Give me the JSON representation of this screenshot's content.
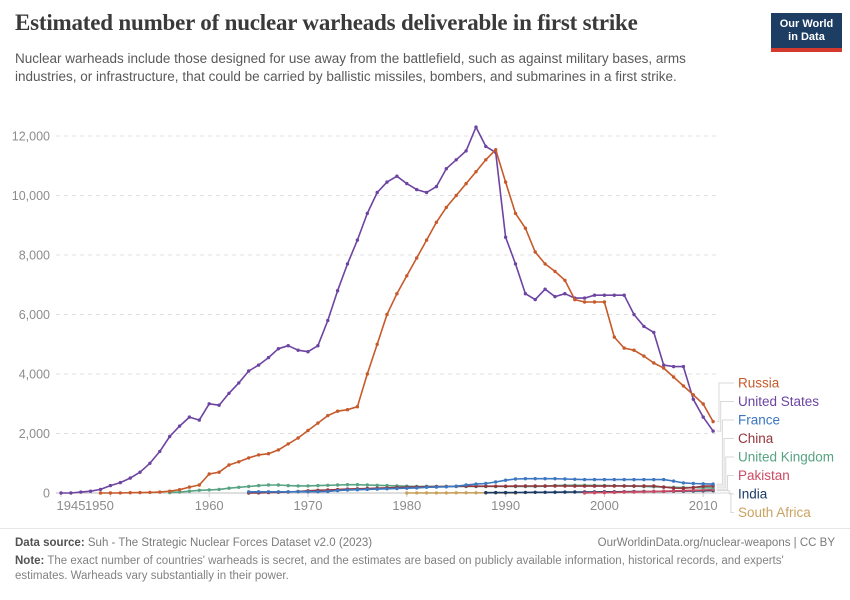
{
  "header": {
    "title": "Estimated number of nuclear warheads deliverable in first strike",
    "subtitle": "Nuclear warheads include those designed for use away from the battlefield, such as against military bases, arms industries, or infrastructure, that could be carried by ballistic missiles, bombers, and submarines in a first strike.",
    "logo_line1": "Our World",
    "logo_line2": "in Data"
  },
  "footer": {
    "datasource_label": "Data source:",
    "datasource": "Suh - The Strategic Nuclear Forces Dataset v2.0 (2023)",
    "credit": "OurWorldinData.org/nuclear-weapons | CC BY",
    "note_label": "Note:",
    "note": "The exact number of countries' warheads is secret, and the estimates are based on publicly available information, historical records, and experts' estimates. Warheads vary substantially in their power."
  },
  "colors": {
    "logo_background": "#1d3d63",
    "logo_stripe": "#d4392e",
    "gridline": "#e0e0e0",
    "zero_line": "#bdbdbd",
    "axis_text": "#8c8c8c",
    "connector": "#d9d9d9"
  },
  "chart_data": {
    "type": "line",
    "title": "Estimated number of nuclear warheads deliverable in first strike",
    "xlabel": "",
    "ylabel": "",
    "xlim": [
      1945,
      2011
    ],
    "ylim": [
      0,
      12400
    ],
    "yticks": [
      0,
      2000,
      4000,
      6000,
      8000,
      10000,
      12000
    ],
    "ytick_labels": [
      "0",
      "2,000",
      "4,000",
      "6,000",
      "8,000",
      "10,000",
      "12,000"
    ],
    "xticks": [
      1945,
      1950,
      1960,
      1970,
      1980,
      1990,
      2000,
      2010
    ],
    "grid": "horizontal-dashed",
    "legend_position": "right",
    "series": [
      {
        "name": "Russia",
        "color": "#C65A2B",
        "start_year": 1949,
        "values": [
          0,
          0,
          5,
          10,
          15,
          20,
          30,
          60,
          110,
          200,
          270,
          640,
          700,
          940,
          1050,
          1180,
          1280,
          1320,
          1450,
          1650,
          1850,
          2100,
          2350,
          2600,
          2750,
          2800,
          2900,
          4000,
          5000,
          6000,
          6700,
          7300,
          7900,
          8500,
          9100,
          9600,
          10000,
          10400,
          10800,
          11200,
          11540,
          10450,
          9400,
          8900,
          8100,
          7700,
          7450,
          7150,
          6500,
          6420,
          6420,
          6420,
          5240,
          4870,
          4800,
          4600,
          4370,
          4200,
          3900,
          3600,
          3300,
          2990,
          2400
        ]
      },
      {
        "name": "United States",
        "color": "#6D44A1",
        "start_year": 1945,
        "values": [
          0,
          0,
          30,
          60,
          120,
          250,
          350,
          500,
          700,
          1000,
          1400,
          1900,
          2250,
          2550,
          2450,
          3000,
          2950,
          3350,
          3700,
          4100,
          4300,
          4550,
          4850,
          4950,
          4800,
          4750,
          4950,
          5800,
          6800,
          7700,
          8500,
          9400,
          10100,
          10450,
          10650,
          10400,
          10200,
          10100,
          10300,
          10900,
          11200,
          11500,
          12300,
          11650,
          11450,
          8600,
          7700,
          6700,
          6500,
          6850,
          6600,
          6700,
          6550,
          6550,
          6650,
          6650,
          6650,
          6650,
          6000,
          5600,
          5400,
          4300,
          4250,
          4250,
          3150,
          2550,
          2080
        ]
      },
      {
        "name": "France",
        "color": "#3C77C1",
        "start_year": 1964,
        "values": [
          40,
          40,
          40,
          40,
          40,
          45,
          45,
          45,
          50,
          80,
          100,
          110,
          120,
          130,
          140,
          150,
          160,
          170,
          190,
          200,
          210,
          230,
          270,
          300,
          320,
          370,
          430,
          470,
          480,
          480,
          480,
          480,
          470,
          460,
          450,
          450,
          450,
          450,
          450,
          450,
          450,
          450,
          450,
          400,
          340,
          320,
          310,
          300
        ]
      },
      {
        "name": "China",
        "color": "#94353D",
        "start_year": 1964,
        "values": [
          1,
          5,
          15,
          25,
          35,
          50,
          75,
          90,
          100,
          115,
          130,
          140,
          150,
          160,
          170,
          185,
          195,
          205,
          210,
          215,
          220,
          225,
          230,
          230,
          230,
          230,
          230,
          232,
          234,
          234,
          234,
          234,
          234,
          232,
          232,
          232,
          232,
          235,
          235,
          235,
          235,
          235,
          200,
          165,
          160,
          185,
          230,
          240
        ]
      },
      {
        "name": "United Kingdom",
        "color": "#57A383",
        "start_year": 1956,
        "values": [
          15,
          30,
          60,
          90,
          105,
          120,
          160,
          190,
          220,
          250,
          270,
          270,
          250,
          240,
          240,
          250,
          260,
          270,
          280,
          280,
          270,
          260,
          250,
          240,
          230,
          220,
          225,
          220,
          220,
          220,
          220,
          220,
          220,
          220,
          220,
          220,
          220,
          220,
          230,
          250,
          260,
          260,
          260,
          255,
          250,
          245,
          240,
          230,
          220,
          210,
          200,
          190,
          185,
          180,
          175,
          170
        ]
      },
      {
        "name": "Pakistan",
        "color": "#CC4A63",
        "start_year": 1998,
        "values": [
          5,
          10,
          15,
          20,
          30,
          35,
          40,
          50,
          60,
          70,
          80,
          90,
          100,
          110
        ]
      },
      {
        "name": "India",
        "color": "#1B3B66",
        "start_year": 1988,
        "values": [
          10,
          12,
          15,
          18,
          20,
          22,
          25,
          28,
          30,
          32,
          35,
          38,
          40,
          42,
          45,
          48,
          50,
          50,
          55,
          60,
          65,
          70,
          75,
          80
        ]
      },
      {
        "name": "South Africa",
        "color": "#C9A35F",
        "start_year": 1980,
        "values": [
          1,
          2,
          3,
          4,
          5,
          6,
          6,
          6,
          6,
          6,
          3,
          0
        ]
      }
    ]
  }
}
